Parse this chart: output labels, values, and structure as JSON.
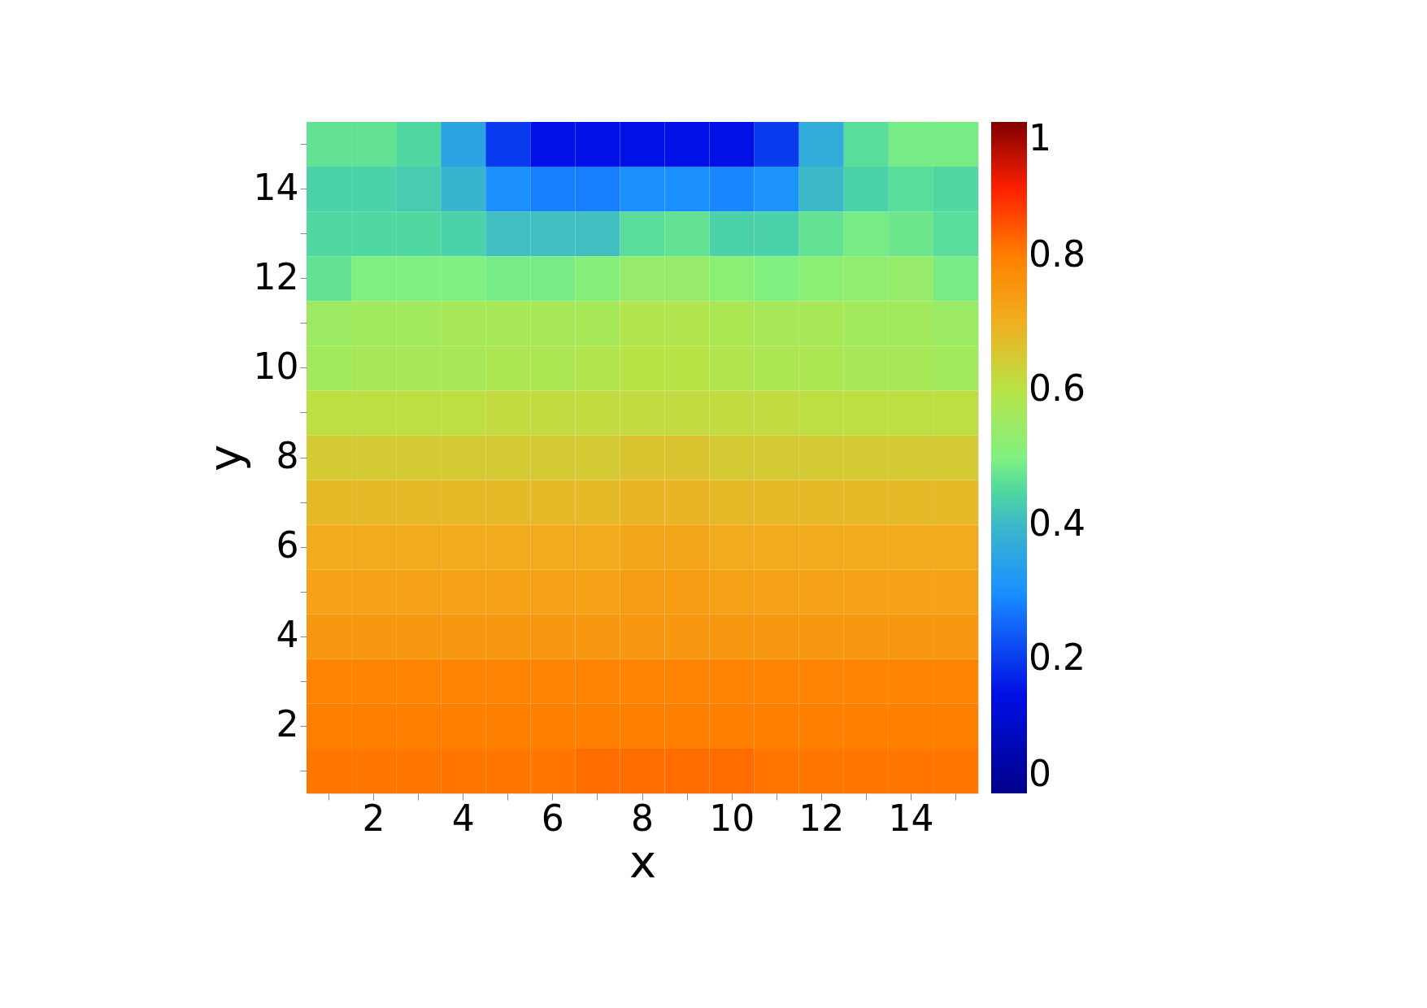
{
  "chart_data": {
    "type": "heatmap",
    "xlabel": "x",
    "ylabel": "y",
    "categories": [
      null,
      "2",
      null,
      "4",
      null,
      "6",
      null,
      "8",
      null,
      "10",
      null,
      "12",
      null,
      "14",
      null
    ],
    "y_categories": [
      null,
      "14",
      null,
      "12",
      null,
      "10",
      null,
      "8",
      null,
      "6",
      null,
      "4",
      null,
      "2",
      null
    ],
    "cells": [
      [
        0.47,
        0.47,
        0.45,
        0.35,
        0.2,
        0.15,
        0.15,
        0.15,
        0.15,
        0.15,
        0.2,
        0.37,
        0.46,
        0.49,
        0.49
      ],
      [
        0.44,
        0.44,
        0.43,
        0.39,
        0.3,
        0.28,
        0.28,
        0.3,
        0.3,
        0.29,
        0.31,
        0.4,
        0.44,
        0.46,
        0.45
      ],
      [
        0.45,
        0.45,
        0.45,
        0.44,
        0.41,
        0.41,
        0.41,
        0.46,
        0.47,
        0.44,
        0.44,
        0.47,
        0.49,
        0.48,
        0.46
      ],
      [
        0.47,
        0.5,
        0.5,
        0.5,
        0.49,
        0.49,
        0.51,
        0.54,
        0.54,
        0.52,
        0.5,
        0.52,
        0.53,
        0.54,
        0.49
      ],
      [
        0.55,
        0.56,
        0.56,
        0.57,
        0.57,
        0.57,
        0.57,
        0.59,
        0.59,
        0.58,
        0.57,
        0.57,
        0.56,
        0.56,
        0.55
      ],
      [
        0.56,
        0.57,
        0.57,
        0.57,
        0.58,
        0.58,
        0.59,
        0.6,
        0.6,
        0.59,
        0.58,
        0.58,
        0.57,
        0.57,
        0.56
      ],
      [
        0.61,
        0.61,
        0.61,
        0.61,
        0.62,
        0.62,
        0.62,
        0.62,
        0.62,
        0.62,
        0.62,
        0.61,
        0.61,
        0.61,
        0.61
      ],
      [
        0.65,
        0.65,
        0.65,
        0.65,
        0.65,
        0.65,
        0.65,
        0.66,
        0.66,
        0.65,
        0.65,
        0.65,
        0.65,
        0.65,
        0.65
      ],
      [
        0.68,
        0.68,
        0.68,
        0.68,
        0.68,
        0.68,
        0.68,
        0.69,
        0.69,
        0.68,
        0.68,
        0.68,
        0.68,
        0.68,
        0.68
      ],
      [
        0.71,
        0.71,
        0.71,
        0.71,
        0.71,
        0.71,
        0.71,
        0.72,
        0.72,
        0.71,
        0.71,
        0.71,
        0.71,
        0.71,
        0.71
      ],
      [
        0.73,
        0.73,
        0.73,
        0.73,
        0.73,
        0.73,
        0.73,
        0.74,
        0.74,
        0.73,
        0.73,
        0.73,
        0.73,
        0.73,
        0.73
      ],
      [
        0.75,
        0.75,
        0.75,
        0.75,
        0.75,
        0.75,
        0.75,
        0.75,
        0.75,
        0.75,
        0.75,
        0.75,
        0.75,
        0.75,
        0.75
      ],
      [
        0.79,
        0.79,
        0.79,
        0.79,
        0.79,
        0.79,
        0.79,
        0.79,
        0.79,
        0.79,
        0.79,
        0.79,
        0.79,
        0.79,
        0.79
      ],
      [
        0.8,
        0.8,
        0.8,
        0.8,
        0.8,
        0.8,
        0.8,
        0.8,
        0.8,
        0.8,
        0.8,
        0.8,
        0.8,
        0.8,
        0.8
      ],
      [
        0.81,
        0.81,
        0.81,
        0.81,
        0.81,
        0.81,
        0.82,
        0.82,
        0.82,
        0.82,
        0.81,
        0.81,
        0.81,
        0.81,
        0.81
      ]
    ],
    "clim": [
      0,
      1
    ],
    "cticks": [
      0,
      0.2,
      0.4,
      0.6,
      0.8,
      1
    ]
  }
}
